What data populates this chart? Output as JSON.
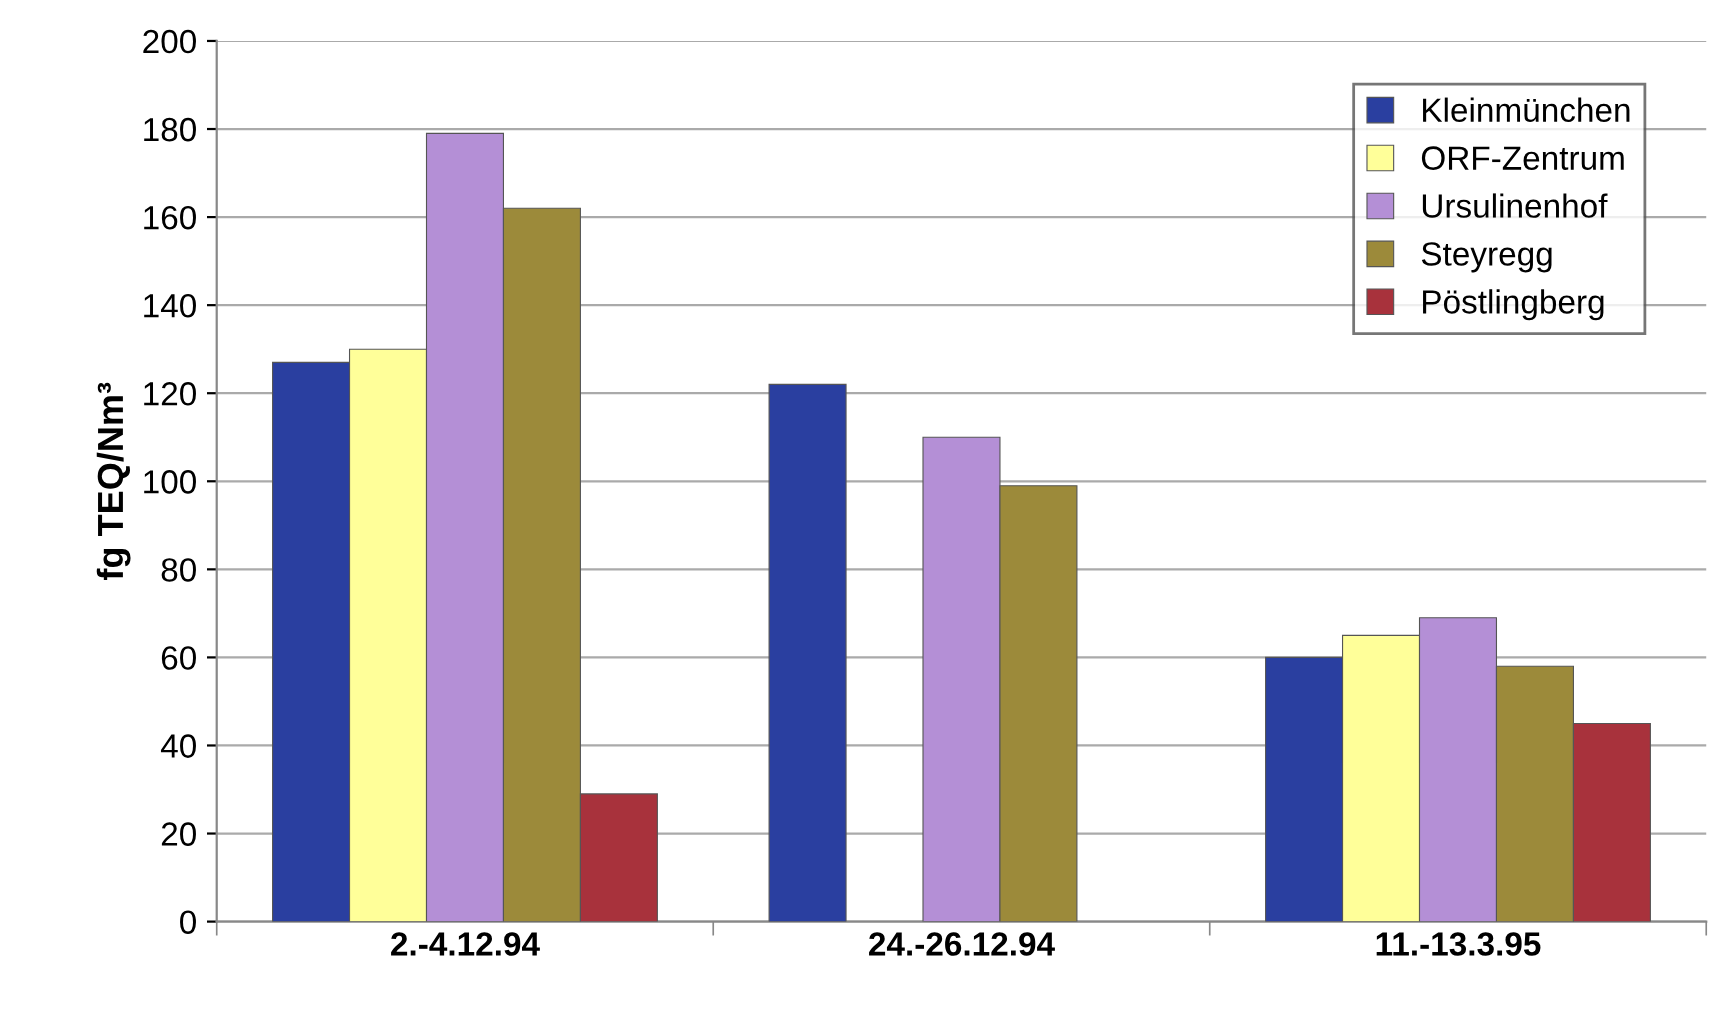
{
  "chart_data": {
    "type": "bar",
    "ylabel": "fg TEQ/Nm³",
    "categories": [
      "2.-4.12.94",
      "24.-26.12.94",
      "11.-13.3.95"
    ],
    "series": [
      {
        "name": "Kleinmünchen",
        "color": "#2a3fa0",
        "values": [
          127,
          122,
          60
        ]
      },
      {
        "name": "ORF-Zentrum",
        "color": "#ffff99",
        "values": [
          130,
          null,
          65
        ]
      },
      {
        "name": "Ursulinenhof",
        "color": "#b48fd6",
        "values": [
          179,
          110,
          69
        ]
      },
      {
        "name": "Steyregg",
        "color": "#9c8a3a",
        "values": [
          162,
          99,
          58
        ]
      },
      {
        "name": "Pöstlingberg",
        "color": "#a8323c",
        "values": [
          29,
          null,
          45
        ]
      }
    ],
    "ylim": [
      0,
      200
    ],
    "yticks": [
      0,
      20,
      40,
      60,
      80,
      100,
      120,
      140,
      160,
      180,
      200
    ],
    "grid": "y",
    "legend": "top right"
  }
}
